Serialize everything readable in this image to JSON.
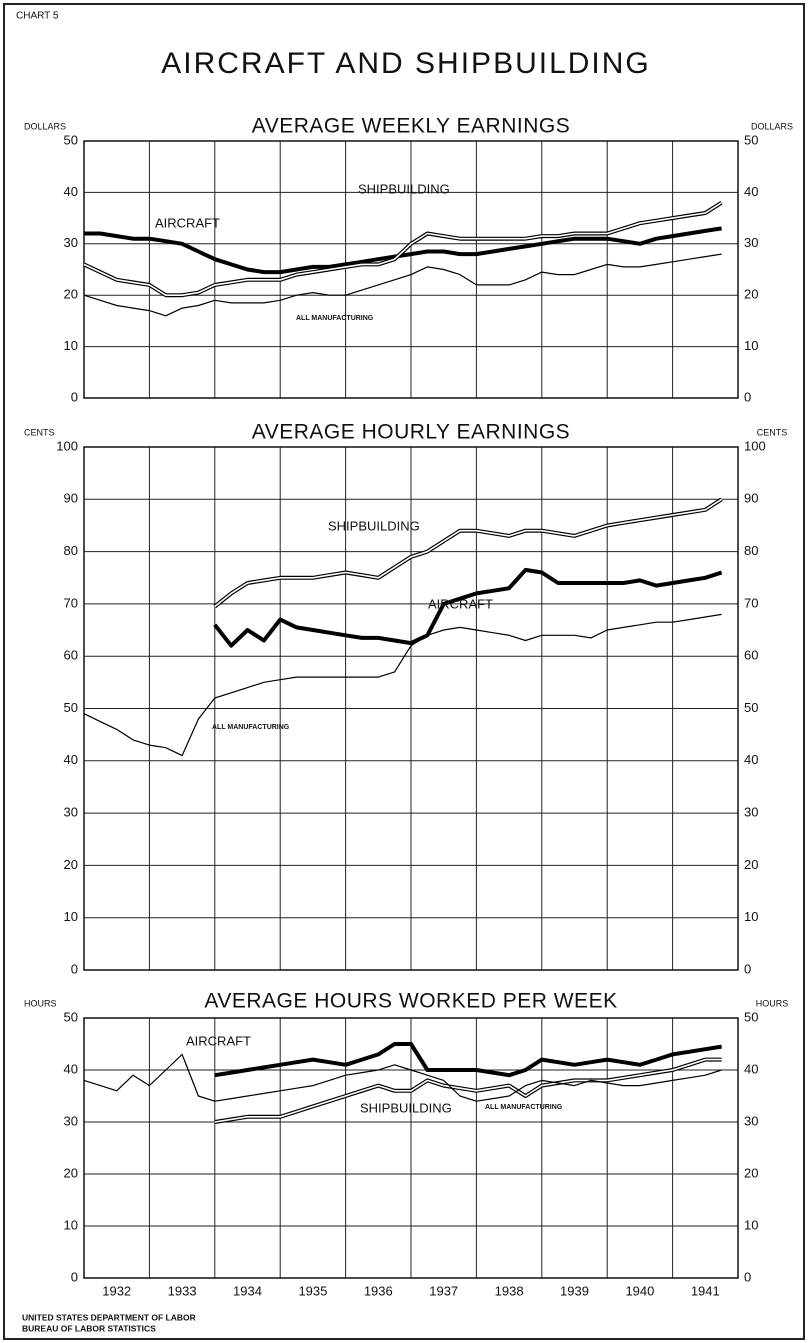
{
  "header": {
    "label": "CHART 5",
    "title": "AIRCRAFT AND SHIPBUILDING"
  },
  "footer": [
    "UNITED STATES DEPARTMENT OF LABOR",
    "BUREAU OF LABOR STATISTICS"
  ],
  "chart_data": [
    {
      "type": "line",
      "title": "AVERAGE WEEKLY EARNINGS",
      "y_unit": "DOLLARS",
      "x": [
        1932,
        1932.25,
        1932.5,
        1932.75,
        1933,
        1933.25,
        1933.5,
        1933.75,
        1934,
        1934.25,
        1934.5,
        1934.75,
        1935,
        1935.25,
        1935.5,
        1935.75,
        1936,
        1936.25,
        1936.5,
        1936.75,
        1937,
        1937.25,
        1937.5,
        1937.75,
        1938,
        1938.25,
        1938.5,
        1938.75,
        1939,
        1939.25,
        1939.5,
        1939.75,
        1940,
        1940.25,
        1940.5,
        1940.75,
        1941,
        1941.25,
        1941.5,
        1941.75
      ],
      "xlim": [
        1932,
        1942
      ],
      "x_gridlines": [
        1932,
        1933,
        1934,
        1935,
        1936,
        1937,
        1938,
        1939,
        1940,
        1941,
        1942
      ],
      "ylim": [
        0,
        50
      ],
      "yticks": [
        0,
        10,
        20,
        30,
        40,
        50
      ],
      "grid": true,
      "series": [
        {
          "name": "AIRCRAFT",
          "color": "#000000",
          "style": "thick",
          "values": [
            32,
            32,
            31.5,
            31,
            31,
            30.5,
            30,
            28.5,
            27,
            26,
            25,
            24.5,
            24.5,
            25,
            25.5,
            25.5,
            26,
            26.5,
            27,
            27.5,
            28,
            28.5,
            28.5,
            28,
            28,
            28.5,
            29,
            29.5,
            30,
            30.5,
            31,
            31,
            31,
            30.5,
            30,
            31,
            31.5,
            32,
            32.5,
            33
          ]
        },
        {
          "name": "SHIPBUILDING",
          "color": "#000000",
          "style": "double",
          "values": [
            26,
            24.5,
            23,
            22.5,
            22,
            20,
            20,
            20.5,
            22,
            22.5,
            23,
            23,
            23,
            24,
            24.5,
            25,
            25.5,
            26,
            26,
            27,
            30,
            32,
            31.5,
            31,
            31,
            31,
            31,
            31,
            31.5,
            31.5,
            32,
            32,
            32,
            33,
            34,
            34.5,
            35,
            35.5,
            36,
            38
          ]
        },
        {
          "name": "ALL MANUFACTURING",
          "color": "#000000",
          "style": "thin",
          "values": [
            20,
            19,
            18,
            17.5,
            17,
            16,
            17.5,
            18,
            19,
            18.5,
            18.5,
            18.5,
            19,
            20,
            20.5,
            20,
            20,
            21,
            22,
            23,
            24,
            25.5,
            25,
            24,
            22,
            22,
            22,
            23,
            24.5,
            24,
            24,
            25,
            26,
            25.5,
            25.5,
            26,
            26.5,
            27,
            27.5,
            28
          ]
        }
      ]
    },
    {
      "type": "line",
      "title": "AVERAGE HOURLY EARNINGS",
      "y_unit": "CENTS",
      "x": [
        1932,
        1932.25,
        1932.5,
        1932.75,
        1933,
        1933.25,
        1933.5,
        1933.75,
        1934,
        1934.25,
        1934.5,
        1934.75,
        1935,
        1935.25,
        1935.5,
        1935.75,
        1936,
        1936.25,
        1936.5,
        1936.75,
        1937,
        1937.25,
        1937.5,
        1937.75,
        1938,
        1938.25,
        1938.5,
        1938.75,
        1939,
        1939.25,
        1939.5,
        1939.75,
        1940,
        1940.25,
        1940.5,
        1940.75,
        1941,
        1941.25,
        1941.5,
        1941.75
      ],
      "xlim": [
        1932,
        1942
      ],
      "x_gridlines": [
        1932,
        1933,
        1934,
        1935,
        1936,
        1937,
        1938,
        1939,
        1940,
        1941,
        1942
      ],
      "ylim": [
        0,
        100
      ],
      "yticks": [
        0,
        10,
        20,
        30,
        40,
        50,
        60,
        70,
        80,
        90,
        100
      ],
      "grid": true,
      "series": [
        {
          "name": "SHIPBUILDING",
          "color": "#000000",
          "style": "double",
          "values": [
            null,
            null,
            null,
            null,
            null,
            null,
            null,
            null,
            69.5,
            72,
            74,
            74.5,
            75,
            75,
            75,
            75.5,
            76,
            75.5,
            75,
            77,
            79,
            80,
            82,
            84,
            84,
            83.5,
            83,
            84,
            84,
            83.5,
            83,
            84,
            85,
            85.5,
            86,
            86.5,
            87,
            87.5,
            88,
            90
          ]
        },
        {
          "name": "AIRCRAFT",
          "color": "#000000",
          "style": "thick",
          "values": [
            null,
            null,
            null,
            null,
            null,
            null,
            null,
            null,
            66,
            62,
            65,
            63,
            67,
            65.5,
            65,
            64.5,
            64,
            63.5,
            63.5,
            63,
            62.5,
            64,
            70,
            71,
            72,
            72.5,
            73,
            76.5,
            76,
            74,
            74,
            74,
            74,
            74,
            74.5,
            73.5,
            74,
            74.5,
            75,
            76
          ]
        },
        {
          "name": "ALL MANUFACTURING",
          "color": "#000000",
          "style": "thin",
          "values": [
            49,
            47.5,
            46,
            44,
            43,
            42.5,
            41,
            48,
            52,
            53,
            54,
            55,
            55.5,
            56,
            56,
            56,
            56,
            56,
            56,
            57,
            62,
            64,
            65,
            65.5,
            65,
            64.5,
            64,
            63,
            64,
            64,
            64,
            63.5,
            65,
            65.5,
            66,
            66.5,
            66.5,
            67,
            67.5,
            68
          ]
        }
      ]
    },
    {
      "type": "line",
      "title": "AVERAGE HOURS WORKED PER WEEK",
      "y_unit": "HOURS",
      "x": [
        1932,
        1932.25,
        1932.5,
        1932.75,
        1933,
        1933.25,
        1933.5,
        1933.75,
        1934,
        1934.25,
        1934.5,
        1934.75,
        1935,
        1935.25,
        1935.5,
        1935.75,
        1936,
        1936.25,
        1936.5,
        1936.75,
        1937,
        1937.25,
        1937.5,
        1937.75,
        1938,
        1938.25,
        1938.5,
        1938.75,
        1939,
        1939.25,
        1939.5,
        1939.75,
        1940,
        1940.25,
        1940.5,
        1940.75,
        1941,
        1941.25,
        1941.5,
        1941.75
      ],
      "xlim": [
        1932,
        1942
      ],
      "x_gridlines": [
        1932,
        1933,
        1934,
        1935,
        1936,
        1937,
        1938,
        1939,
        1940,
        1941,
        1942
      ],
      "xticks": [
        {
          "value": 1932.5,
          "label": "1932"
        },
        {
          "value": 1933.5,
          "label": "1933"
        },
        {
          "value": 1934.5,
          "label": "1934"
        },
        {
          "value": 1935.5,
          "label": "1935"
        },
        {
          "value": 1936.5,
          "label": "1936"
        },
        {
          "value": 1937.5,
          "label": "1937"
        },
        {
          "value": 1938.5,
          "label": "1938"
        },
        {
          "value": 1939.5,
          "label": "1939"
        },
        {
          "value": 1940.5,
          "label": "1940"
        },
        {
          "value": 1941.5,
          "label": "1941"
        }
      ],
      "ylim": [
        0,
        50
      ],
      "yticks": [
        0,
        10,
        20,
        30,
        40,
        50
      ],
      "grid": true,
      "series": [
        {
          "name": "AIRCRAFT",
          "color": "#000000",
          "style": "thick",
          "values": [
            null,
            null,
            null,
            null,
            null,
            null,
            null,
            null,
            39,
            39.5,
            40,
            40.5,
            41,
            41.5,
            42,
            41.5,
            41,
            42,
            43,
            45,
            45,
            40,
            40,
            40,
            40,
            39.5,
            39,
            40,
            42,
            41.5,
            41,
            41.5,
            42,
            41.5,
            41,
            42,
            43,
            43.5,
            44,
            44.5
          ]
        },
        {
          "name": "SHIPBUILDING",
          "color": "#000000",
          "style": "double",
          "values": [
            null,
            null,
            null,
            null,
            null,
            null,
            null,
            null,
            30,
            30.5,
            31,
            31,
            31,
            32,
            33,
            34,
            35,
            36,
            37,
            36,
            36,
            38,
            37,
            36.5,
            36,
            36.5,
            37,
            35,
            37,
            37.5,
            38,
            38,
            38,
            38.5,
            39,
            39.5,
            40,
            41,
            42,
            42
          ]
        },
        {
          "name": "ALL MANUFACTURING",
          "color": "#000000",
          "style": "thin",
          "values": [
            38,
            37,
            36,
            39,
            37,
            40,
            43,
            35,
            34,
            34.5,
            35,
            35.5,
            36,
            36.5,
            37,
            38,
            39,
            39.5,
            40,
            41,
            40,
            39,
            38,
            35,
            34,
            34.5,
            35,
            37,
            38,
            37.5,
            37,
            38,
            37.5,
            37,
            37,
            37.5,
            38,
            38.5,
            39,
            40
          ]
        }
      ]
    }
  ]
}
